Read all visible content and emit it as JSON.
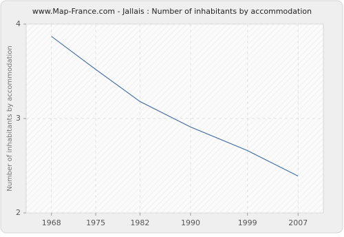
{
  "chart_data": {
    "type": "line",
    "title": "www.Map-France.com - Jallais : Number of inhabitants by accommodation",
    "y_label": "Number of inhabitants by accommodation",
    "x": [
      1968,
      1975,
      1982,
      1990,
      1999,
      2007
    ],
    "series": [
      {
        "name": "Jallais",
        "color": "#4a74a8",
        "values": [
          3.87,
          3.52,
          3.18,
          2.91,
          2.66,
          2.39
        ]
      }
    ],
    "xlim": [
      1964,
      2011
    ],
    "xticks": [
      1968,
      1975,
      1982,
      1990,
      1999,
      2007
    ],
    "ylim": [
      2,
      4
    ],
    "yticks": [
      2,
      3,
      4
    ],
    "grid": true
  }
}
